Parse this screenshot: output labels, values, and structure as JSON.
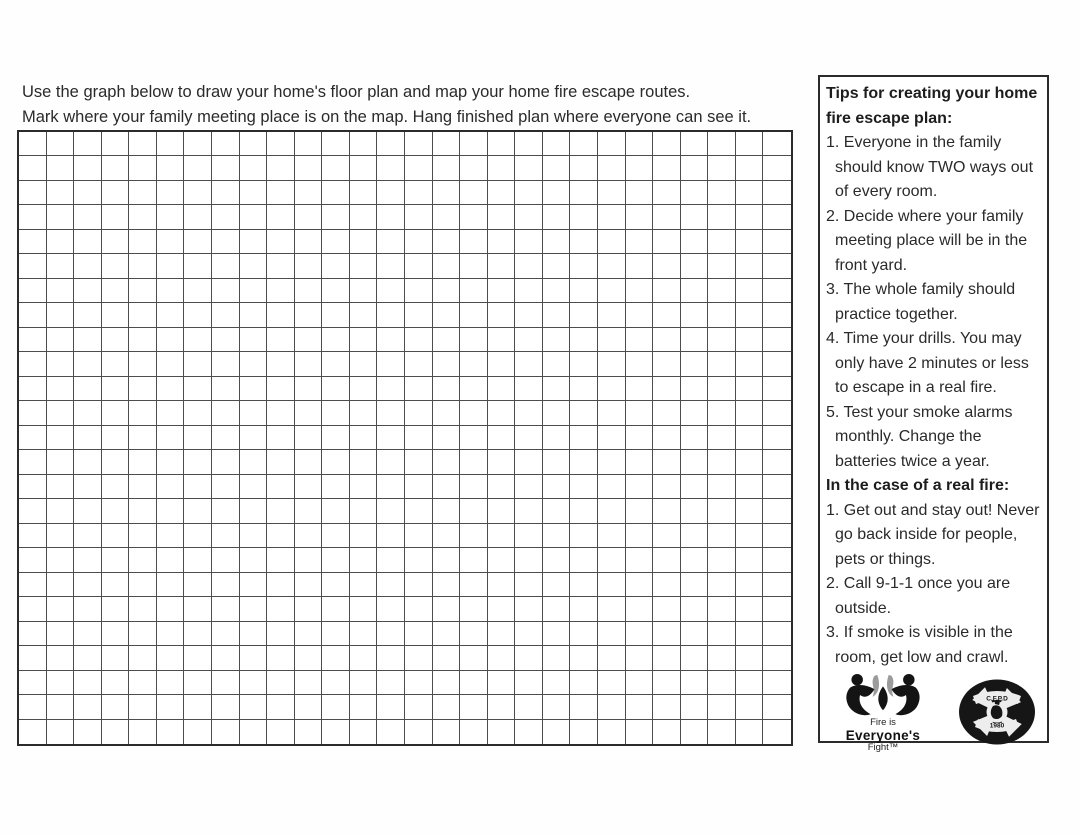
{
  "instructions": {
    "line1": "Use the graph below to draw your home's floor plan and map your home fire escape routes.",
    "line2": "Mark where your family meeting place is on the map. Hang finished plan where everyone can see it."
  },
  "grid": {
    "columns": 28,
    "rows": 25
  },
  "sidebar": {
    "tips_heading": "Tips for creating your home fire escape plan:",
    "tips": [
      "Everyone in the family should know TWO ways out of every room.",
      "Decide where your family meeting place will be in the front yard.",
      "The whole family should practice together.",
      "Time your drills. You may only have 2 minutes or less to escape in a real fire.",
      "Test your smoke alarms monthly. Change the batteries twice a year."
    ],
    "real_fire_heading": "In the case of a real fire:",
    "real_fire_steps": [
      "Get out and stay out! Never go back inside for people, pets or things.",
      "Call 9-1-1 once you are outside.",
      "If smoke is visible in the room, get low and crawl."
    ],
    "logos": {
      "fief": {
        "line1": "Fire is",
        "line2": "Everyone's",
        "line3": "Fight™"
      },
      "badge": {
        "top_text": "C.F.P.D",
        "bottom_text": "1980"
      }
    }
  },
  "colors": {
    "ink": "#262626",
    "grid_line": "#4d4d4d",
    "logo_black": "#141414",
    "logo_gray": "#9b9b9b"
  }
}
